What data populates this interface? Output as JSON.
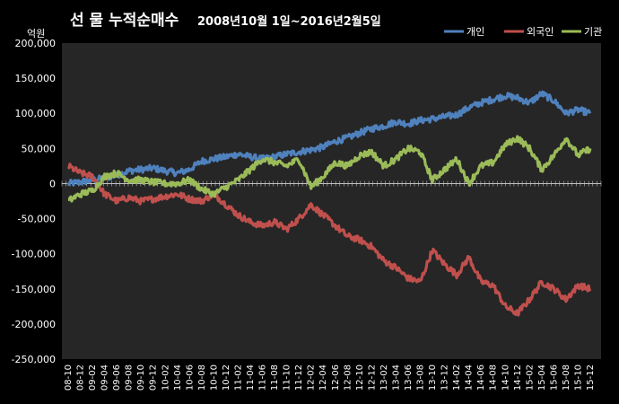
{
  "chart_data": {
    "type": "line",
    "title_main": "선 물 누적순매수",
    "title_sub": "2008년10월 1일~2016년2월5일",
    "ylabel": "억원",
    "ylim": [
      -250000,
      200000
    ],
    "yticks": [
      200000,
      150000,
      100000,
      50000,
      0,
      -50000,
      -100000,
      -150000,
      -200000,
      -250000
    ],
    "ytick_labels": [
      "200,000",
      "150,000",
      "100,000",
      "50,000",
      "0",
      "-50,000",
      "-100,000",
      "-150,000",
      "-200,000",
      "-250,000"
    ],
    "x": [
      "08-10",
      "08-12",
      "09-02",
      "09-04",
      "09-06",
      "09-08",
      "09-10",
      "09-12",
      "10-02",
      "10-04",
      "10-06",
      "10-08",
      "10-10",
      "10-12",
      "11-02",
      "11-04",
      "11-06",
      "11-08",
      "11-10",
      "11-12",
      "12-02",
      "12-04",
      "12-06",
      "12-08",
      "12-10",
      "12-12",
      "13-02",
      "13-04",
      "13-06",
      "13-08",
      "13-10",
      "13-12",
      "14-02",
      "14-04",
      "14-06",
      "14-08",
      "14-10",
      "14-12",
      "15-02",
      "15-04",
      "15-06",
      "15-08",
      "15-10",
      "15-12"
    ],
    "legend_position": "top-right",
    "grid": false,
    "series": [
      {
        "name": "개인",
        "color": "#4f81bd",
        "values": [
          0,
          2000,
          5000,
          8000,
          12000,
          18000,
          20000,
          22000,
          18000,
          15000,
          20000,
          32000,
          35000,
          38000,
          42000,
          38000,
          35000,
          38000,
          42000,
          45000,
          48000,
          52000,
          60000,
          65000,
          72000,
          78000,
          82000,
          88000,
          85000,
          90000,
          92000,
          95000,
          98000,
          108000,
          115000,
          120000,
          125000,
          122000,
          115000,
          128000,
          118000,
          100000,
          105000,
          100000
        ]
      },
      {
        "name": "외국인",
        "color": "#c0504d",
        "values": [
          25000,
          15000,
          10000,
          -15000,
          -25000,
          -20000,
          -25000,
          -22000,
          -18000,
          -15000,
          -22000,
          -25000,
          -15000,
          -30000,
          -45000,
          -55000,
          -60000,
          -55000,
          -65000,
          -50000,
          -30000,
          -45000,
          -60000,
          -75000,
          -80000,
          -90000,
          -110000,
          -120000,
          -135000,
          -140000,
          -95000,
          -115000,
          -130000,
          -105000,
          -140000,
          -145000,
          -175000,
          -185000,
          -165000,
          -140000,
          -150000,
          -165000,
          -145000,
          -150000
        ]
      },
      {
        "name": "기관",
        "color": "#9bbb59",
        "values": [
          -25000,
          -15000,
          -10000,
          10000,
          15000,
          5000,
          5000,
          2000,
          0,
          0,
          5000,
          -8000,
          -15000,
          -5000,
          5000,
          20000,
          35000,
          30000,
          25000,
          35000,
          -5000,
          10000,
          30000,
          25000,
          40000,
          45000,
          25000,
          35000,
          50000,
          45000,
          5000,
          20000,
          35000,
          0,
          25000,
          30000,
          55000,
          65000,
          50000,
          20000,
          40000,
          65000,
          40000,
          50000
        ]
      }
    ]
  }
}
